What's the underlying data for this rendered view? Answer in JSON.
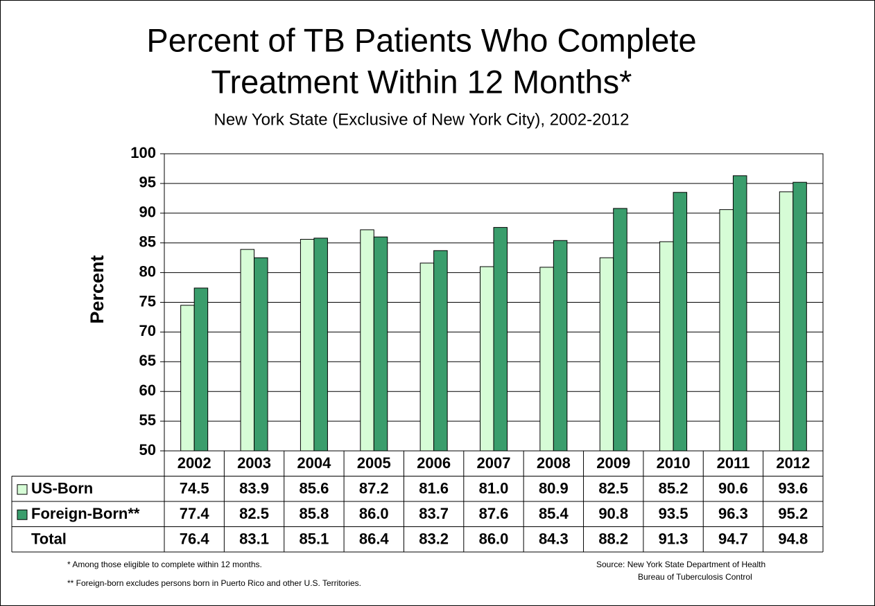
{
  "chart_data": {
    "type": "bar",
    "title_lines": [
      "Percent of TB Patients Who Complete",
      "Treatment Within 12 Months*"
    ],
    "subtitle": "New York State (Exclusive of New York City), 2002-2012",
    "y_label": "Percent",
    "categories": [
      "2002",
      "2003",
      "2004",
      "2005",
      "2006",
      "2007",
      "2008",
      "2009",
      "2010",
      "2011",
      "2012"
    ],
    "series": [
      {
        "name": "US-Born",
        "color": "#d6fcd6",
        "values": [
          74.5,
          83.9,
          85.6,
          87.2,
          81.6,
          81,
          80.9,
          82.5,
          85.2,
          90.6,
          93.6
        ],
        "value_labels": [
          "74.5",
          "83.9",
          "85.6",
          "87.2",
          "81.6",
          "81.0",
          "80.9",
          "82.5",
          "85.2",
          "90.6",
          "93.6"
        ]
      },
      {
        "name": "Foreign-Born**",
        "color": "#3a9d6c",
        "values": [
          77.4,
          82.5,
          85.8,
          86,
          83.7,
          87.6,
          85.4,
          90.8,
          93.5,
          96.3,
          95.2
        ],
        "value_labels": [
          "77.4",
          "82.5",
          "85.8",
          "86.0",
          "83.7",
          "87.6",
          "85.4",
          "90.8",
          "93.5",
          "96.3",
          "95.2"
        ]
      },
      {
        "name": "Total",
        "values": [
          76.4,
          83.1,
          85.1,
          86.4,
          83.2,
          86,
          84.3,
          88.2,
          91.3,
          94.7,
          94.8
        ],
        "value_labels": [
          "76.4",
          "83.1",
          "85.1",
          "86.4",
          "83.2",
          "86.0",
          "84.3",
          "88.2",
          "91.3",
          "94.7",
          "94.8"
        ]
      }
    ],
    "ylim": [
      50,
      100
    ],
    "yticks": [
      50,
      55,
      60,
      65,
      70,
      75,
      80,
      85,
      90,
      95,
      100
    ],
    "grid": true,
    "footnotes": [
      "* Among those eligible to complete within 12 months.",
      "** Foreign-born excludes persons born in Puerto Rico and other U.S. Territories."
    ],
    "source": [
      "Source:  New York State Department of Health",
      "Bureau of Tuberculosis Control"
    ]
  }
}
